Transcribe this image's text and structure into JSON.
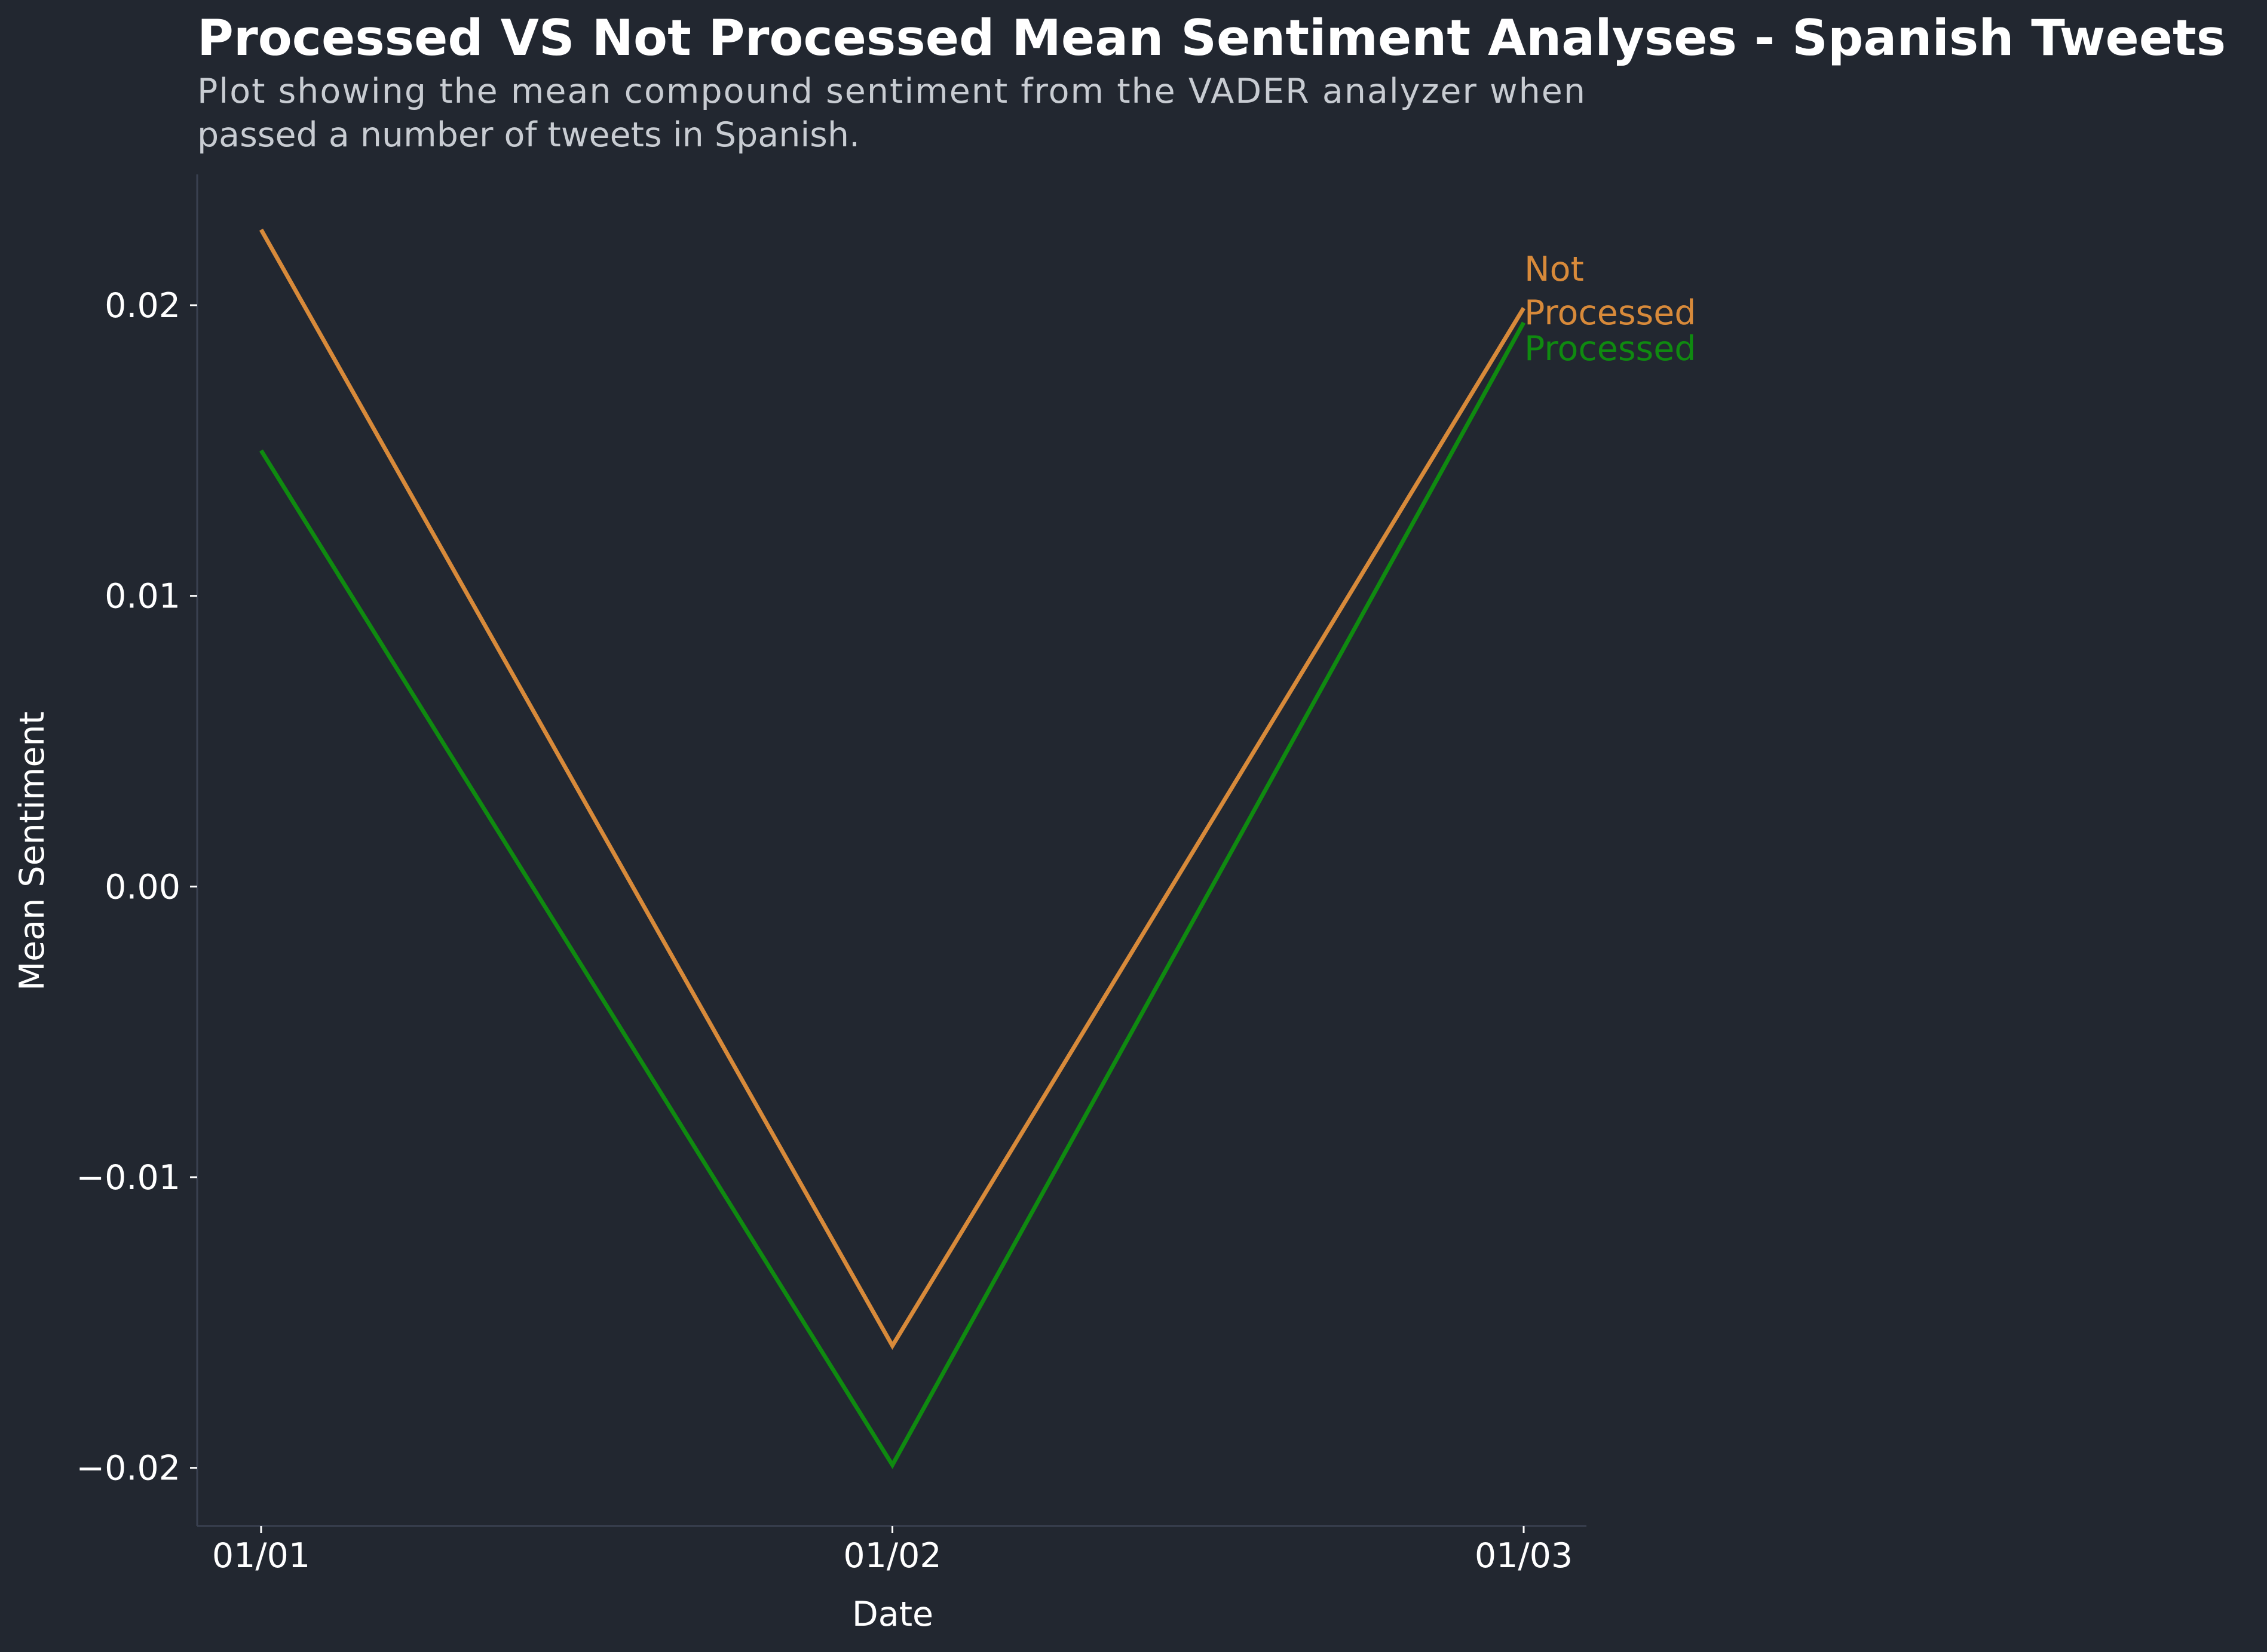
{
  "chart_data": {
    "type": "line",
    "title": "Processed VS Not Processed Mean Sentiment Analyses - Spanish Tweets",
    "subtitle_lines": [
      "Plot showing the mean compound sentiment from the VADER analyzer when",
      "passed a number of tweets in Spanish."
    ],
    "xlabel": "Date",
    "ylabel": "Mean Sentiment",
    "categories": [
      "01/01",
      "01/02",
      "01/03"
    ],
    "yticks": [
      "−0.02",
      "−0.01",
      "0.00",
      "0.01",
      "0.02"
    ],
    "ytick_values": [
      -0.02,
      -0.01,
      0.0,
      0.01,
      0.02
    ],
    "ylim": [
      -0.022,
      0.0245
    ],
    "grid": false,
    "legend": "inline labels at line ends",
    "series": [
      {
        "name": "Not Processed",
        "label_lines": [
          "Not",
          "Processed"
        ],
        "color": "#d88a3a",
        "values": [
          0.0226,
          -0.0158,
          0.0199
        ]
      },
      {
        "name": "Processed",
        "label_lines": [
          "Processed"
        ],
        "color": "#0f8a10",
        "values": [
          0.015,
          -0.0199,
          0.0194
        ]
      }
    ]
  }
}
